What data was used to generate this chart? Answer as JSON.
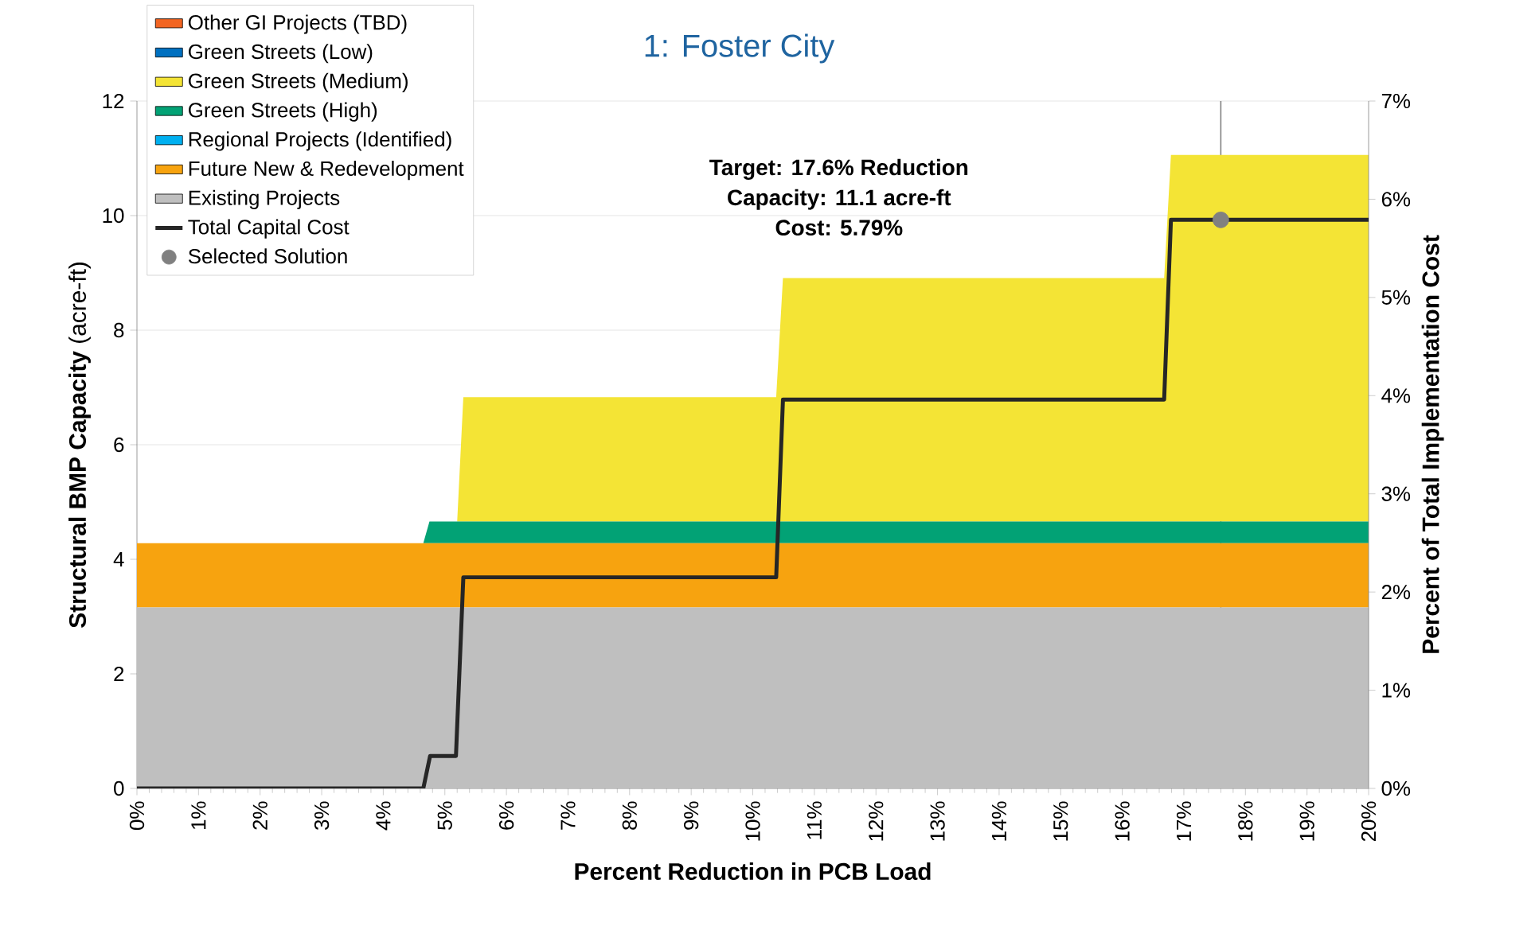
{
  "chart_data": {
    "type": "area",
    "title": "1: Foster City",
    "xlabel": "Percent Reduction in PCB Load",
    "ylabel": "**Structural BMP Capacity** (acre-ft)",
    "y2label": "Percent of Total Implementation Cost",
    "x": [
      0,
      4.65,
      4.75,
      5.2,
      5.3,
      10.38,
      10.49,
      16.68,
      16.79,
      20
    ],
    "stacked": true,
    "series": [
      {
        "name": "Existing Projects",
        "color": "#bfbfbf",
        "values": [
          3.16,
          3.16,
          3.16,
          3.16,
          3.16,
          3.16,
          3.16,
          3.16,
          3.16,
          3.16
        ]
      },
      {
        "name": "Future New & Redevelopment",
        "color": "#f7a30f",
        "values": [
          1.12,
          1.12,
          1.12,
          1.12,
          1.12,
          1.12,
          1.12,
          1.12,
          1.12,
          1.12
        ]
      },
      {
        "name": "Regional Projects (Identified)",
        "color": "#00b0f0",
        "values": [
          null,
          null,
          null,
          null,
          null,
          null,
          null,
          null,
          null,
          null
        ]
      },
      {
        "name": "Green Streets (High)",
        "color": "#02a275",
        "values": [
          0,
          0,
          0.38,
          0.38,
          0.38,
          0.38,
          0.38,
          0.38,
          0.38,
          0.38
        ]
      },
      {
        "name": "Green Streets (Medium)",
        "color": "#f4e435",
        "values": [
          0,
          0,
          0,
          0,
          2.17,
          2.17,
          4.25,
          4.25,
          6.4,
          6.4
        ]
      },
      {
        "name": "Green Streets (Low)",
        "color": "#0070c0",
        "values": [
          null,
          null,
          null,
          null,
          null,
          null,
          null,
          null,
          null,
          null
        ]
      },
      {
        "name": "Other GI Projects (TBD)",
        "color": "#f26522",
        "values": [
          null,
          null,
          null,
          null,
          null,
          null,
          null,
          null,
          null,
          null
        ]
      },
      {
        "name": "Total Capital Cost",
        "type": "line",
        "axis": "y2",
        "color": "#262626",
        "x": [
          0,
          4.65,
          4.76,
          5.18,
          5.3,
          10.38,
          10.49,
          16.68,
          16.79,
          20
        ],
        "values": [
          0,
          0,
          0.33,
          0.33,
          2.15,
          2.15,
          3.96,
          3.96,
          5.79,
          5.79
        ]
      },
      {
        "name": "Selected Solution",
        "type": "scatter",
        "axis": "y2",
        "color": "#808080",
        "x": [
          17.6
        ],
        "values": [
          5.79
        ]
      }
    ],
    "xlim": [
      0,
      20
    ],
    "xticks": [
      {
        "value": 0,
        "label": "0%"
      },
      {
        "value": 1,
        "label": "1%"
      },
      {
        "value": 2,
        "label": "2%"
      },
      {
        "value": 3,
        "label": "3%"
      },
      {
        "value": 4,
        "label": "4%"
      },
      {
        "value": 5,
        "label": "5%"
      },
      {
        "value": 6,
        "label": "6%"
      },
      {
        "value": 7,
        "label": "7%"
      },
      {
        "value": 8,
        "label": "8%"
      },
      {
        "value": 9,
        "label": "9%"
      },
      {
        "value": 10,
        "label": "10%"
      },
      {
        "value": 11,
        "label": "11%"
      },
      {
        "value": 12,
        "label": "12%"
      },
      {
        "value": 13,
        "label": "13%"
      },
      {
        "value": 14,
        "label": "14%"
      },
      {
        "value": 15,
        "label": "15%"
      },
      {
        "value": 16,
        "label": "16%"
      },
      {
        "value": 17,
        "label": "17%"
      },
      {
        "value": 18,
        "label": "18%"
      },
      {
        "value": 19,
        "label": "19%"
      },
      {
        "value": 20,
        "label": "20%"
      }
    ],
    "ylim": [
      0,
      12
    ],
    "yticks": [
      0,
      2,
      4,
      6,
      8,
      10,
      12
    ],
    "y2lim": [
      0,
      7
    ],
    "y2ticks": [
      {
        "value": 0,
        "label": "0%"
      },
      {
        "value": 1,
        "label": "1%"
      },
      {
        "value": 2,
        "label": "2%"
      },
      {
        "value": 3,
        "label": "3%"
      },
      {
        "value": 4,
        "label": "4%"
      },
      {
        "value": 5,
        "label": "5%"
      },
      {
        "value": 6,
        "label": "6%"
      },
      {
        "value": 7,
        "label": "7%"
      }
    ],
    "ref_lines": [
      {
        "axis": "x",
        "value": 17.6,
        "label": null,
        "color": "#808080"
      }
    ],
    "annotations": [
      "Target: 17.6% Reduction",
      "Capacity: 11.1 acre-ft",
      "Cost: 5.79%"
    ],
    "grid": "y",
    "legend": "top left"
  }
}
